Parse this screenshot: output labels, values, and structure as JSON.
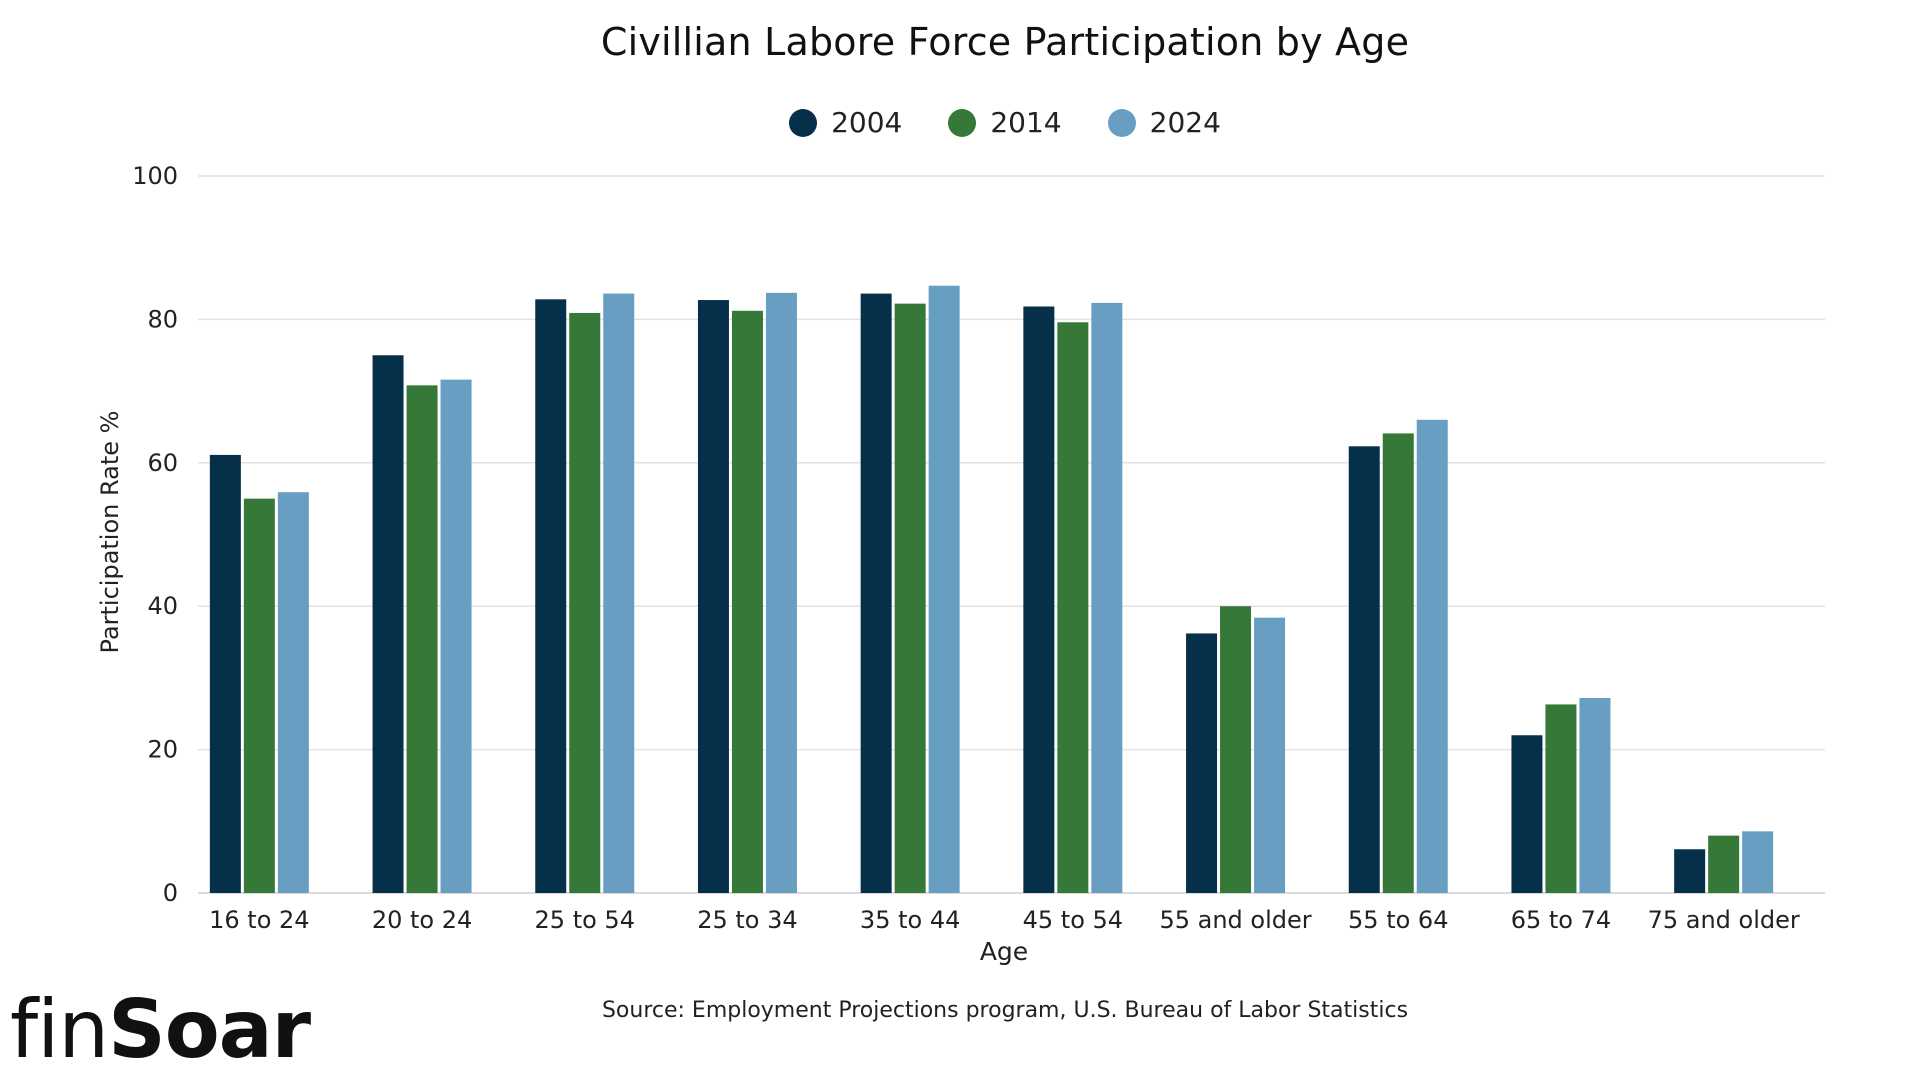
{
  "chart_data": {
    "type": "bar",
    "title": "Civillian Labore Force Participation by Age",
    "xlabel": "Age",
    "ylabel": "Participation Rate %",
    "ylim": [
      0,
      100
    ],
    "yticks": [
      0,
      20,
      40,
      60,
      80,
      100
    ],
    "grid": true,
    "legend_position": "top-center",
    "categories": [
      "16 to 24",
      "20 to 24",
      "25 to 54",
      "25 to 34",
      "35 to 44",
      "45 to 54",
      "55 and older",
      "55 to 64",
      "65 to 74",
      "75 and older"
    ],
    "series": [
      {
        "name": "2004",
        "color": "#06304a",
        "values": [
          61.1,
          75.0,
          82.8,
          82.7,
          83.6,
          81.8,
          36.2,
          62.3,
          22.0,
          6.1
        ]
      },
      {
        "name": "2014",
        "color": "#367837",
        "values": [
          55.0,
          70.8,
          80.9,
          81.2,
          82.2,
          79.6,
          40.0,
          64.1,
          26.3,
          8.0
        ]
      },
      {
        "name": "2024",
        "color": "#689ec1",
        "values": [
          55.9,
          71.6,
          83.6,
          83.7,
          84.7,
          82.3,
          38.4,
          66.0,
          27.2,
          8.6
        ]
      }
    ]
  },
  "source": "Source: Employment Projections program, U.S. Bureau of Labor Statistics",
  "logo": {
    "light": "fin",
    "bold": "Soar"
  }
}
